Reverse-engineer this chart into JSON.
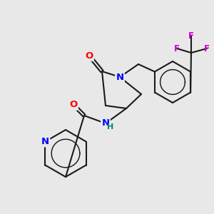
{
  "bg_color": "#e8e8e8",
  "bond_color": "#1a1a1a",
  "bond_lw": 1.5,
  "atom_colors": {
    "O": "#ff0000",
    "N": "#0000ff",
    "F": "#cc00cc",
    "NH": "#008080",
    "C": "#1a1a1a"
  },
  "font_size": 9.5
}
